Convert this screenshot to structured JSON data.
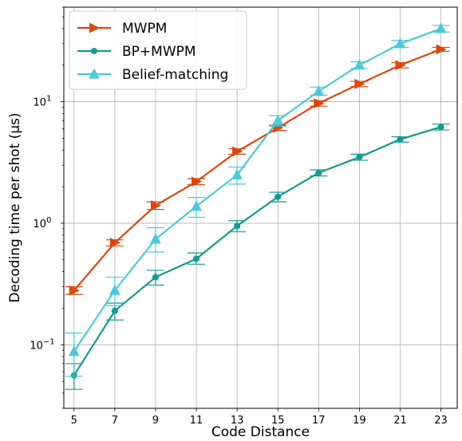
{
  "chart_data": {
    "type": "line",
    "xlabel": "Code Distance",
    "ylabel": "Decoding time per shot (μs)",
    "x": [
      5,
      7,
      9,
      11,
      13,
      15,
      17,
      19,
      21,
      23
    ],
    "x_tick_labels": [
      "5",
      "7",
      "9",
      "11",
      "13",
      "15",
      "17",
      "19",
      "21",
      "23"
    ],
    "y_scale": "log",
    "ylim": [
      0.03,
      60
    ],
    "y_tick_labels": [
      {
        "value": 0.1,
        "base": "10",
        "exp": "−1"
      },
      {
        "value": 1,
        "base": "10",
        "exp": "0"
      },
      {
        "value": 10,
        "base": "10",
        "exp": "1"
      }
    ],
    "grid": true,
    "legend_position": "top-left",
    "series": [
      {
        "name": "MWPM",
        "color": "#d9480f",
        "marker": "triangle-right",
        "values": [
          0.28,
          0.69,
          1.4,
          2.2,
          3.9,
          6.1,
          9.7,
          14,
          20,
          27
        ],
        "err_low": [
          0.26,
          0.65,
          1.3,
          2.08,
          3.7,
          5.8,
          9.2,
          13.3,
          19,
          26
        ],
        "err_high": [
          0.3,
          0.73,
          1.5,
          2.33,
          4.1,
          6.4,
          10.2,
          14.7,
          21,
          28
        ]
      },
      {
        "name": "BP+MWPM",
        "color": "#159a90",
        "marker": "circle",
        "values": [
          0.056,
          0.19,
          0.36,
          0.51,
          0.95,
          1.65,
          2.6,
          3.5,
          4.9,
          6.2
        ],
        "err_low": [
          0.043,
          0.16,
          0.31,
          0.46,
          0.85,
          1.5,
          2.45,
          3.3,
          4.65,
          5.85
        ],
        "err_high": [
          0.07,
          0.22,
          0.41,
          0.57,
          1.05,
          1.8,
          2.75,
          3.7,
          5.15,
          6.55
        ]
      },
      {
        "name": "Belief-matching",
        "color": "#4cc9d9",
        "marker": "triangle-up",
        "values": [
          0.088,
          0.28,
          0.74,
          1.38,
          2.5,
          7.0,
          12.2,
          20,
          30,
          40
        ],
        "err_low": [
          0.055,
          0.21,
          0.58,
          1.12,
          2.1,
          6.3,
          11.3,
          18.8,
          28,
          37.5
        ],
        "err_high": [
          0.125,
          0.36,
          0.92,
          1.63,
          2.9,
          7.7,
          13.2,
          21.3,
          32,
          42.5
        ]
      }
    ]
  }
}
